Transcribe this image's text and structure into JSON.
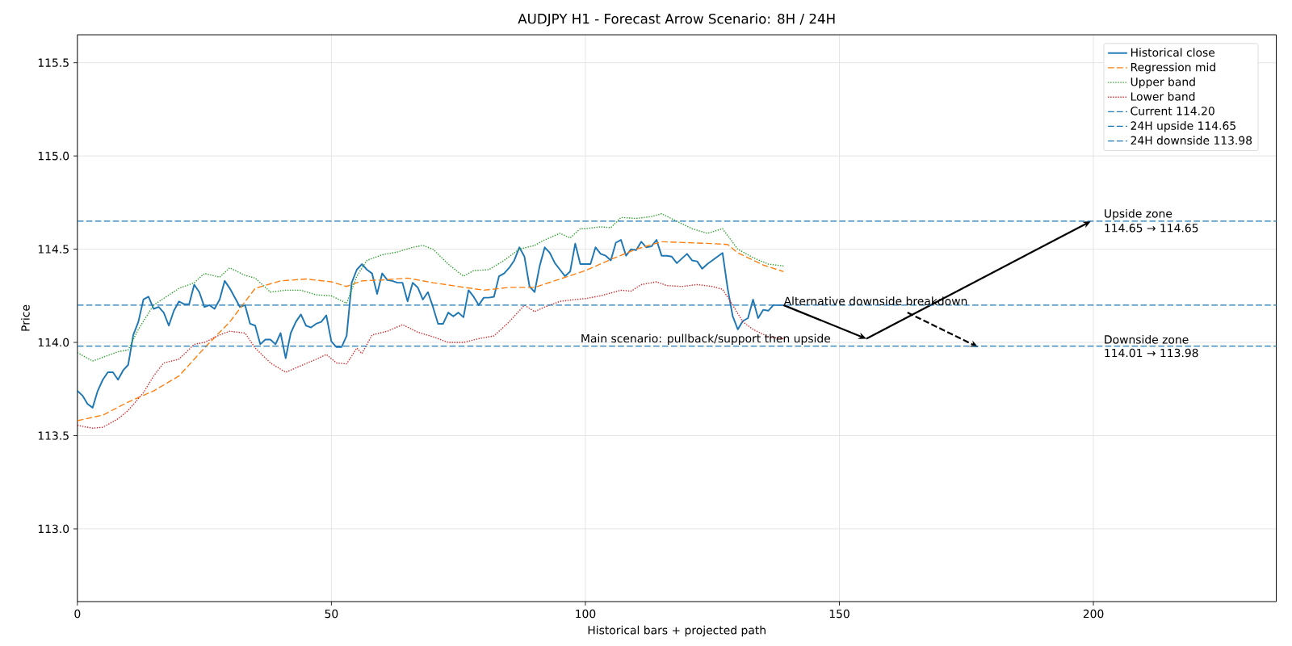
{
  "chart_data": {
    "type": "line",
    "title": "AUDJPY H1 - Forecast Arrow Scenario: 8H / 24H",
    "xlabel": "Historical bars + projected path",
    "ylabel": "Price",
    "xlim": [
      0,
      236
    ],
    "ylim": [
      112.61,
      115.65
    ],
    "xticks": [
      0,
      50,
      100,
      150,
      200
    ],
    "yticks": [
      {
        "value": 113,
        "label": "113.0"
      },
      {
        "value": 113.5,
        "label": "113.5"
      },
      {
        "value": 114,
        "label": "114.0"
      },
      {
        "value": 114.5,
        "label": "114.5"
      },
      {
        "value": 115,
        "label": "115.0"
      },
      {
        "value": 115.5,
        "label": "115.5"
      }
    ],
    "grid": true,
    "legend": "top right",
    "series": [
      {
        "name": "Historical close",
        "color": "#1f77b4",
        "line_style": "solid",
        "x": [
          0,
          1,
          2,
          3,
          4,
          5,
          6,
          7,
          8,
          9,
          10,
          11,
          12,
          13,
          14,
          15,
          16,
          17,
          18,
          19,
          20,
          21,
          22,
          23,
          24,
          25,
          26,
          27,
          28,
          29,
          30,
          31,
          32,
          33,
          34,
          35,
          36,
          37,
          38,
          39,
          40,
          41,
          42,
          43,
          44,
          45,
          46,
          47,
          48,
          49,
          50,
          51,
          52,
          53,
          54,
          55,
          56,
          57,
          58,
          59,
          60,
          61,
          62,
          63,
          64,
          65,
          66,
          67,
          68,
          69,
          70,
          71,
          72,
          73,
          74,
          75,
          76,
          77,
          78,
          79,
          80,
          81,
          82,
          83,
          84,
          85,
          86,
          87,
          88,
          89,
          90,
          91,
          92,
          93,
          94,
          95,
          96,
          97,
          98,
          99,
          100,
          101,
          102,
          103,
          104,
          105,
          106,
          107,
          108,
          109,
          110,
          111,
          112,
          113,
          114,
          115,
          116,
          117,
          118,
          119,
          120,
          121,
          122,
          123,
          124,
          125,
          126,
          127,
          128,
          129,
          130,
          131,
          132,
          133,
          134,
          135,
          136,
          137,
          138,
          139
        ],
        "values": [
          113.74,
          113.715,
          113.67,
          113.65,
          113.74,
          113.8,
          113.84,
          113.84,
          113.8,
          113.85,
          113.88,
          114.04,
          114.11,
          114.23,
          114.245,
          114.18,
          114.19,
          114.16,
          114.09,
          114.17,
          114.22,
          114.205,
          114.205,
          114.31,
          114.27,
          114.19,
          114.2,
          114.18,
          114.23,
          114.33,
          114.29,
          114.24,
          114.19,
          114.2,
          114.1,
          114.09,
          113.99,
          114.015,
          114.015,
          113.99,
          114.05,
          113.915,
          114.05,
          114.11,
          114.15,
          114.09,
          114.08,
          114.1,
          114.11,
          114.145,
          114.005,
          113.975,
          113.975,
          114.035,
          114.32,
          114.39,
          114.42,
          114.39,
          114.37,
          114.26,
          114.37,
          114.335,
          114.33,
          114.32,
          114.32,
          114.22,
          114.32,
          114.295,
          114.23,
          114.27,
          114.19,
          114.1,
          114.1,
          114.16,
          114.14,
          114.16,
          114.135,
          114.28,
          114.245,
          114.2,
          114.24,
          114.24,
          114.245,
          114.355,
          114.37,
          114.4,
          114.44,
          114.51,
          114.46,
          114.3,
          114.27,
          114.41,
          114.51,
          114.48,
          114.425,
          114.39,
          114.355,
          114.38,
          114.53,
          114.42,
          114.42,
          114.42,
          114.51,
          114.475,
          114.465,
          114.44,
          114.535,
          114.55,
          114.465,
          114.5,
          114.495,
          114.54,
          114.51,
          114.515,
          114.55,
          114.465,
          114.465,
          114.46,
          114.425,
          114.45,
          114.475,
          114.44,
          114.435,
          114.395,
          114.42,
          114.44,
          114.46,
          114.48,
          114.29,
          114.14,
          114.07,
          114.115,
          114.13,
          114.23,
          114.13,
          114.175,
          114.17,
          114.2,
          114.2,
          114.2
        ]
      },
      {
        "name": "Regression mid",
        "color": "#ff7f0e",
        "line_style": "dashed",
        "x": [
          0,
          5,
          10,
          15,
          20,
          25,
          30,
          35,
          40,
          45,
          50,
          53,
          56,
          60,
          65,
          70,
          75,
          80,
          85,
          90,
          95,
          100,
          105,
          110,
          115,
          120,
          125,
          128,
          130,
          135,
          139
        ],
        "values": [
          113.58,
          113.61,
          113.68,
          113.74,
          113.82,
          113.97,
          114.11,
          114.29,
          114.33,
          114.34,
          114.325,
          114.3,
          114.33,
          114.335,
          114.345,
          114.32,
          114.3,
          114.28,
          114.295,
          114.295,
          114.34,
          114.385,
          114.445,
          114.5,
          114.54,
          114.535,
          114.53,
          114.525,
          114.48,
          114.415,
          114.38
        ]
      },
      {
        "name": "Upper band",
        "color": "#2ca02c",
        "line_style": "dotted",
        "x": [
          0,
          3,
          5,
          8,
          10,
          12,
          15,
          20,
          23,
          25,
          28,
          30,
          33,
          35,
          38,
          41,
          44,
          47,
          50,
          53,
          55,
          57,
          60,
          63,
          66,
          68,
          70,
          73,
          76,
          78,
          81,
          84,
          87,
          90,
          92,
          95,
          97,
          99,
          100,
          103,
          105,
          107,
          110,
          113,
          115,
          118,
          121,
          124,
          127,
          130,
          133,
          136,
          139
        ],
        "values": [
          113.945,
          113.9,
          113.92,
          113.95,
          113.96,
          114.07,
          114.2,
          114.29,
          114.32,
          114.37,
          114.35,
          114.4,
          114.36,
          114.345,
          114.27,
          114.28,
          114.28,
          114.255,
          114.25,
          114.21,
          114.355,
          114.44,
          114.47,
          114.485,
          114.51,
          114.52,
          114.5,
          114.42,
          114.355,
          114.385,
          114.39,
          114.44,
          114.5,
          114.52,
          114.55,
          114.585,
          114.56,
          114.61,
          114.61,
          114.62,
          114.615,
          114.67,
          114.665,
          114.675,
          114.69,
          114.65,
          114.61,
          114.585,
          114.61,
          114.5,
          114.455,
          114.42,
          114.41
        ]
      },
      {
        "name": "Lower band",
        "color": "#d62728",
        "line_style": "dotted",
        "x": [
          0,
          3,
          5,
          8,
          10,
          13,
          15,
          17,
          20,
          23,
          25,
          28,
          30,
          33,
          35,
          38,
          41,
          44,
          47,
          49,
          51,
          53,
          55,
          56,
          58,
          61,
          64,
          67,
          70,
          73,
          76,
          79,
          82,
          85,
          88,
          90,
          92,
          95,
          98,
          100,
          103,
          105,
          107,
          109,
          111,
          114,
          116,
          119,
          122,
          125,
          127,
          129,
          131,
          133,
          136,
          139
        ],
        "values": [
          113.555,
          113.54,
          113.545,
          113.59,
          113.635,
          113.73,
          113.82,
          113.89,
          113.91,
          113.99,
          114.0,
          114.04,
          114.06,
          114.05,
          113.97,
          113.89,
          113.84,
          113.875,
          113.91,
          113.935,
          113.89,
          113.885,
          113.97,
          113.94,
          114.04,
          114.06,
          114.095,
          114.055,
          114.03,
          114.0,
          114.0,
          114.02,
          114.035,
          114.11,
          114.2,
          114.165,
          114.19,
          114.22,
          114.23,
          114.235,
          114.25,
          114.265,
          114.28,
          114.275,
          114.31,
          114.325,
          114.305,
          114.3,
          114.31,
          114.3,
          114.285,
          114.2,
          114.11,
          114.07,
          114.03,
          114.02
        ]
      },
      {
        "color": "#000000",
        "line_style": "solid",
        "x": [
          139,
          155.3,
          199.5
        ],
        "values": [
          114.2,
          114.02,
          114.65
        ]
      },
      {
        "color": "#000000",
        "line_style": "dashed",
        "x": [
          163.4,
          177.3
        ],
        "values": [
          114.16,
          113.975
        ]
      }
    ],
    "ref_lines": [
      {
        "axis": "y",
        "value": 114.2,
        "label": "Current 114.20",
        "color": "#1f77b4",
        "line_style": "dashed"
      },
      {
        "axis": "y",
        "value": 114.65,
        "label": "24H upside 114.65",
        "color": "#1f77b4",
        "line_style": "dashed"
      },
      {
        "axis": "y",
        "value": 113.98,
        "label": "24H downside 113.98",
        "color": "#1f77b4",
        "line_style": "dashed"
      }
    ],
    "annotations": [
      {
        "text": "Main scenario: pullback/support then upside",
        "x": 99,
        "y": 114.0
      },
      {
        "text": "Alternative downside breakdown",
        "x": 139,
        "y": 114.2
      },
      {
        "text": "Upside zone",
        "x": 202,
        "y": 114.65
      },
      {
        "text": "114.65 → 114.65",
        "x": 202,
        "y": 114.65
      },
      {
        "text": "Downside zone",
        "x": 202,
        "y": 113.98
      },
      {
        "text": "114.01 → 113.98",
        "x": 202,
        "y": 113.98
      }
    ]
  }
}
